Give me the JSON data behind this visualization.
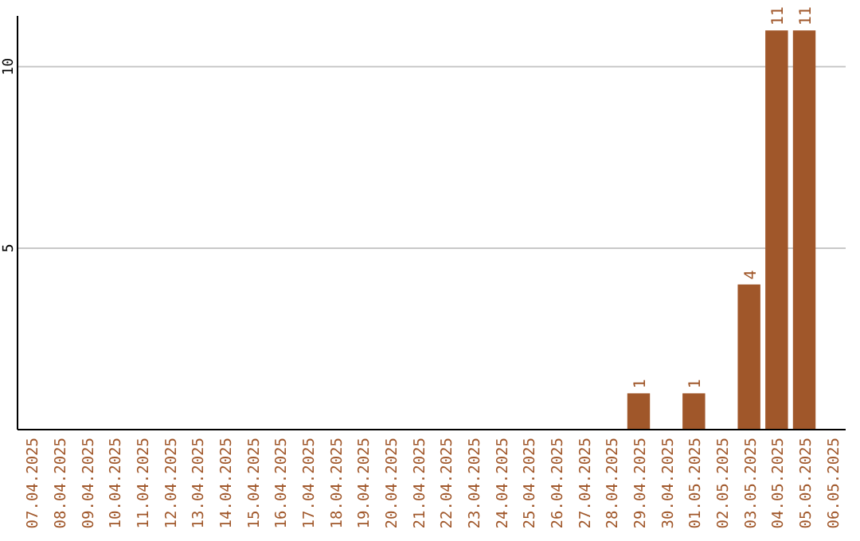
{
  "chart_data": {
    "type": "bar",
    "categories": [
      "07.04.2025",
      "08.04.2025",
      "09.04.2025",
      "10.04.2025",
      "11.04.2025",
      "12.04.2025",
      "13.04.2025",
      "14.04.2025",
      "15.04.2025",
      "16.04.2025",
      "17.04.2025",
      "18.04.2025",
      "19.04.2025",
      "20.04.2025",
      "21.04.2025",
      "22.04.2025",
      "23.04.2025",
      "24.04.2025",
      "25.04.2025",
      "26.04.2025",
      "27.04.2025",
      "28.04.2025",
      "29.04.2025",
      "30.04.2025",
      "01.05.2025",
      "02.05.2025",
      "03.05.2025",
      "04.05.2025",
      "05.05.2025",
      "06.05.2025"
    ],
    "values": [
      0,
      0,
      0,
      0,
      0,
      0,
      0,
      0,
      0,
      0,
      0,
      0,
      0,
      0,
      0,
      0,
      0,
      0,
      0,
      0,
      0,
      0,
      1,
      0,
      1,
      0,
      4,
      11,
      11,
      0
    ],
    "value_labels": [
      null,
      null,
      null,
      null,
      null,
      null,
      null,
      null,
      null,
      null,
      null,
      null,
      null,
      null,
      null,
      null,
      null,
      null,
      null,
      null,
      null,
      null,
      "1",
      null,
      "1",
      null,
      "4",
      "11",
      "11",
      null
    ],
    "color": "#a0572a",
    "ylim": [
      0,
      11.4
    ],
    "yticks": [
      5,
      10
    ],
    "grid": "y"
  }
}
